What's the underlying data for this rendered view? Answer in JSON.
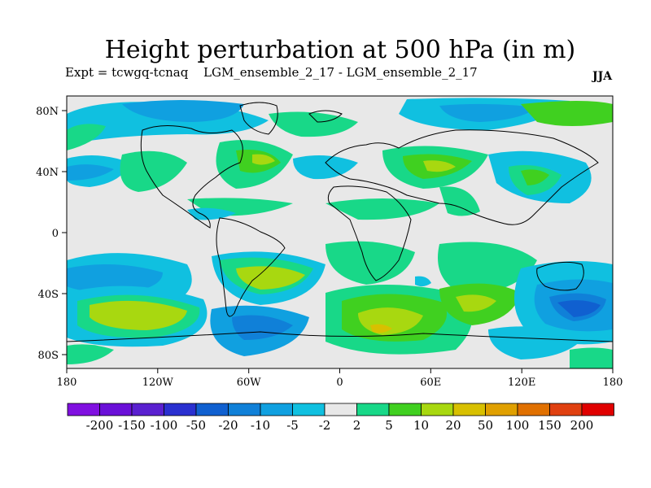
{
  "title": "Height perturbation at 500 hPa (in m)",
  "expt_label": "Expt = tcwgq-tcnaq",
  "ensemble_label": "LGM_ensemble_2_17 - LGM_ensemble_2_17",
  "season": "JJA",
  "x_ticks": [
    "180",
    "120W",
    "60W",
    "0",
    "60E",
    "120E",
    "180"
  ],
  "y_ticks": [
    "80N",
    "40N",
    "0",
    "40S",
    "80S"
  ],
  "colorbar": {
    "colors": [
      "#8010e0",
      "#6a10d8",
      "#5a20d0",
      "#2a30d0",
      "#1060d0",
      "#1080d8",
      "#10a0e0",
      "#10c0e0",
      "#e8e8e8",
      "#18d888",
      "#40d020",
      "#a8d810",
      "#d8c000",
      "#e0a000",
      "#e07000",
      "#e04010",
      "#e00000"
    ],
    "labels": [
      "-200",
      "-150",
      "-100",
      "-50",
      "-20",
      "-10",
      "-5",
      "-2",
      "2",
      "5",
      "10",
      "20",
      "50",
      "100",
      "150",
      "200"
    ]
  },
  "palette": {
    "neutral": "#e8e8e8",
    "blue_light": "#10c0e0",
    "blue_mid": "#10a0e0",
    "blue_dark": "#1080d8",
    "blue_deep": "#1060d0",
    "green": "#18d888",
    "green_dark": "#40d020",
    "yellow_green": "#a8d810",
    "gold": "#d8c000"
  }
}
